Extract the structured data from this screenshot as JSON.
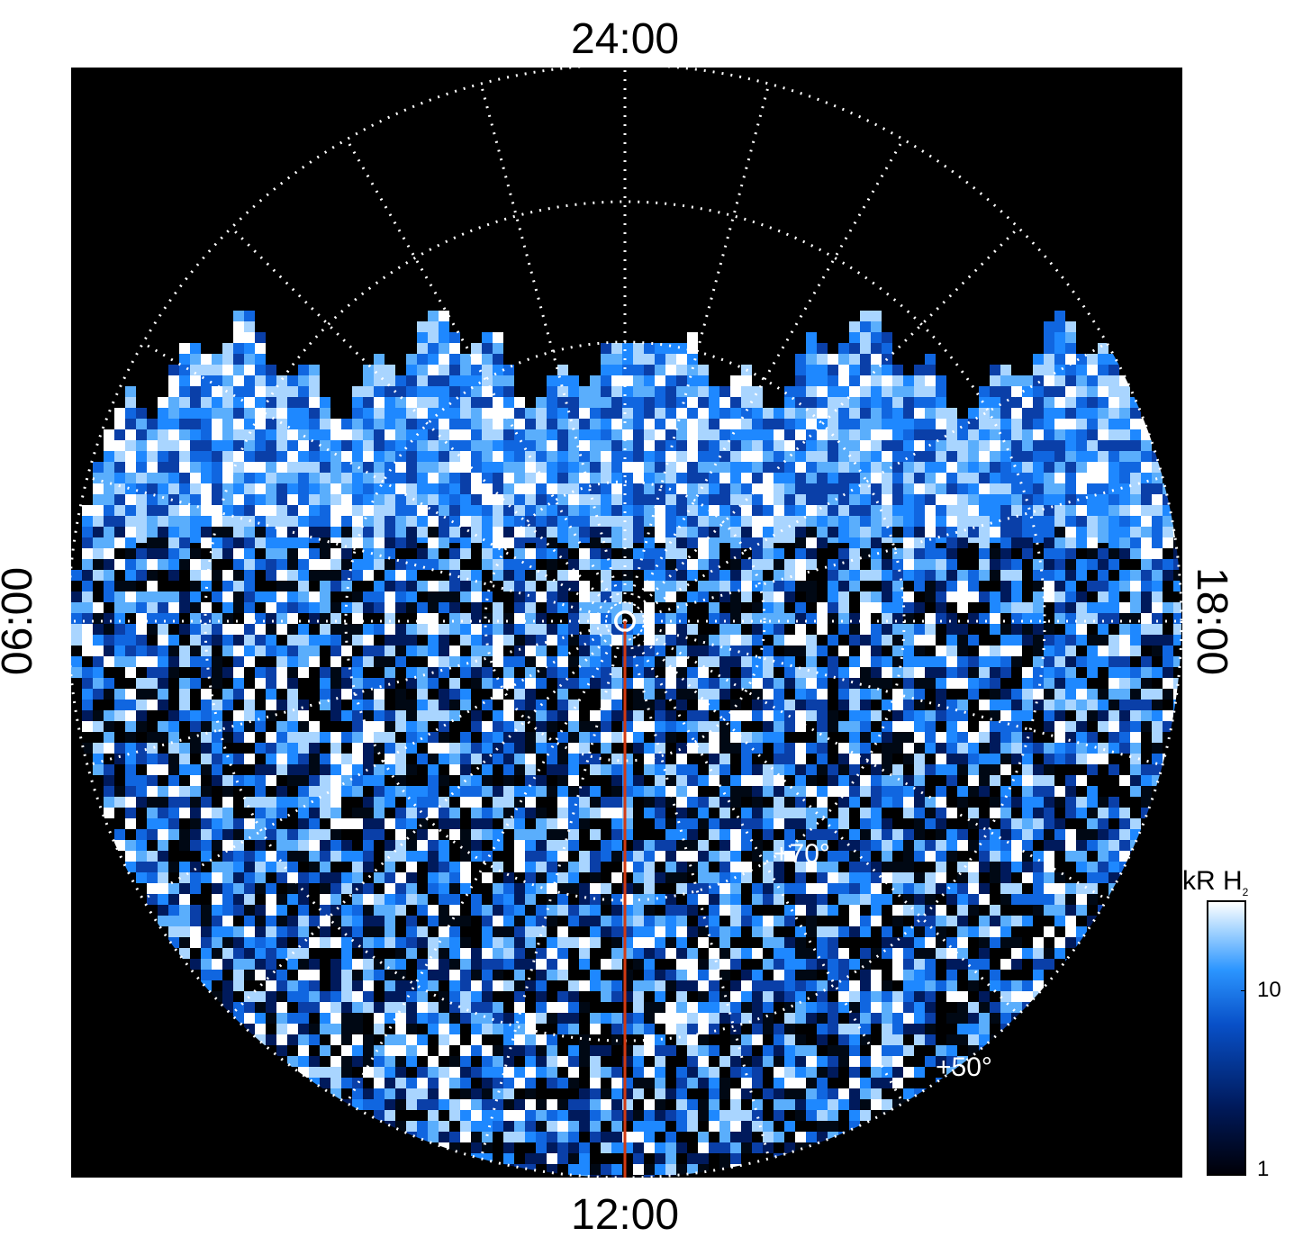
{
  "labels": {
    "top": "24:00",
    "bottom": "12:00",
    "left": "06:00",
    "right": "18:00",
    "lat_70": "+70°",
    "lat_50": "+50°"
  },
  "colorbar": {
    "title_main": "kR H",
    "title_sub": "2",
    "tick_10": "10",
    "tick_1": "1"
  },
  "colors": {
    "background": "#000000",
    "grid": "#ffffff",
    "meridian_line": "#d23a12",
    "emission_dark": "#001a5c",
    "emission_mid": "#1478ff",
    "emission_bright": "#ffffff"
  }
}
